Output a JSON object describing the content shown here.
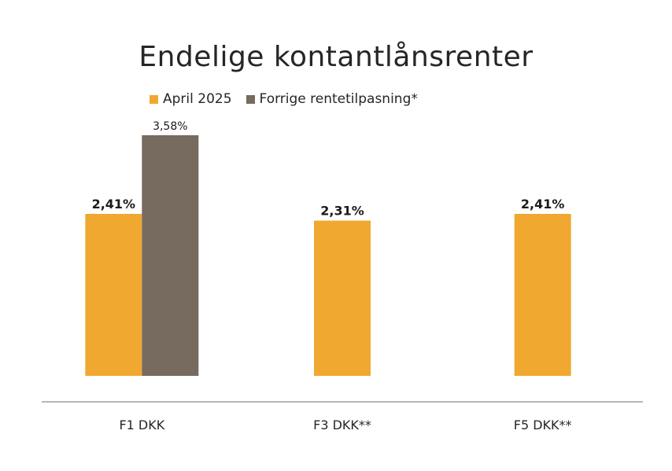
{
  "chart_data": {
    "type": "bar",
    "title": "Endelige kontantlånsrenter",
    "categories": [
      "F1 DKK",
      "F3 DKK**",
      "F5 DKK**"
    ],
    "series": [
      {
        "name": "April 2025",
        "color": "#f0a830",
        "values": [
          2.41,
          2.31,
          2.41
        ],
        "labels": [
          "2,41%",
          "2,31%",
          "2,41%"
        ]
      },
      {
        "name": "Forrige rentetilpasning*",
        "color": "#776a5e",
        "values": [
          3.58,
          null,
          null
        ],
        "labels": [
          "3,58%",
          "",
          ""
        ]
      }
    ],
    "ylim": [
      0,
      3.58
    ],
    "grid": false,
    "legend_position": "top"
  }
}
